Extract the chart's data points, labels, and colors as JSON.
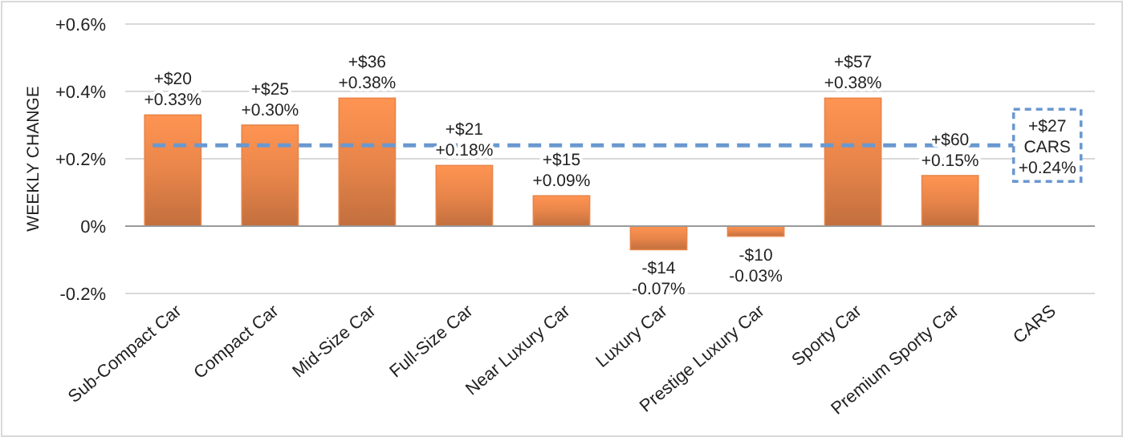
{
  "chart_data": {
    "type": "bar",
    "ylabel": "WEEKLY CHANGE",
    "categories": [
      "Sub-Compact Car",
      "Compact Car",
      "Mid-Size Car",
      "Full-Size Car",
      "Near Luxury Car",
      "Luxury Car",
      "Prestige Luxury Car",
      "Sporty Car",
      "Premium Sporty Car",
      "CARS"
    ],
    "values": [
      0.33,
      0.3,
      0.38,
      0.18,
      0.09,
      -0.07,
      -0.03,
      0.38,
      0.15,
      null
    ],
    "value_labels": [
      "+$20\n+0.33%",
      "+$25\n+0.30%",
      "+$36\n+0.38%",
      "+$21\n+0.18%",
      "+$15\n+0.09%",
      "-$14\n-0.07%",
      "-$10\n-0.03%",
      "+$57\n+0.38%",
      "+$60\n+0.15%",
      null
    ],
    "color": "#e8854a",
    "ylim": [
      -0.2,
      0.6
    ],
    "yticks": [
      {
        "value": -0.2,
        "label": "-0.2%"
      },
      {
        "value": 0,
        "label": "0%"
      },
      {
        "value": 0.2,
        "label": "+0.2%"
      },
      {
        "value": 0.4,
        "label": "+0.4%"
      },
      {
        "value": 0.6,
        "label": "+0.6%"
      }
    ],
    "grid": "y",
    "ref_lines": [
      {
        "axis": "y",
        "value": 0.24,
        "label": "+$27\nCARS\n+0.24%",
        "color": "#6a98cf",
        "line_style": "dashed"
      }
    ]
  }
}
